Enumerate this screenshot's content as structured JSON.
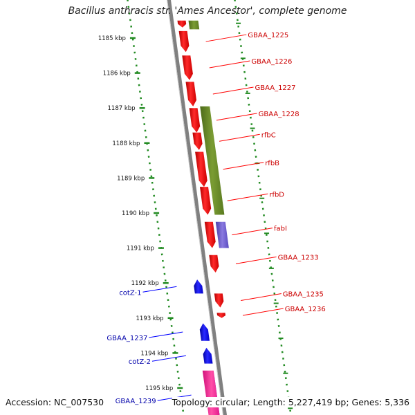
{
  "title": "Bacillus anthracis str. 'Ames Ancestor', complete genome",
  "footer": {
    "accession": "Accession: NC_007530",
    "topology": "Topology: circular; Length: 5,227,419 bp; Genes: 5,336"
  },
  "colors": {
    "backbone": "#808080",
    "red_gene": "#ff0000",
    "blue_gene": "#0000ff",
    "olive_feature": "#6b8e23",
    "slateblue_feature": "#6a5acd",
    "pink_feature": "#ff1493",
    "ruler_tick": "#228b22",
    "red_label": "#cc0000",
    "blue_label": "#0000aa"
  },
  "ruler": {
    "unit": "kbp",
    "ticks": [
      {
        "label": "1185 kbp",
        "kbp": 1185
      },
      {
        "label": "1186 kbp",
        "kbp": 1186
      },
      {
        "label": "1187 kbp",
        "kbp": 1187
      },
      {
        "label": "1188 kbp",
        "kbp": 1188
      },
      {
        "label": "1189 kbp",
        "kbp": 1189
      },
      {
        "label": "1190 kbp",
        "kbp": 1190
      },
      {
        "label": "1191 kbp",
        "kbp": 1191
      },
      {
        "label": "1192 kbp",
        "kbp": 1192
      },
      {
        "label": "1193 kbp",
        "kbp": 1193
      },
      {
        "label": "1194 kbp",
        "kbp": 1194
      },
      {
        "label": "1195 kbp",
        "kbp": 1195
      }
    ]
  },
  "features": [
    {
      "strand": "forward",
      "color": "red",
      "start": 1184.5,
      "end": 1184.7,
      "label": ""
    },
    {
      "strand": "forward",
      "color": "red",
      "start": 1184.8,
      "end": 1185.4,
      "label": "GBAA_1225"
    },
    {
      "strand": "forward",
      "color": "red",
      "start": 1185.5,
      "end": 1186.2,
      "label": "GBAA_1226"
    },
    {
      "strand": "forward",
      "color": "red",
      "start": 1186.25,
      "end": 1186.95,
      "label": "GBAA_1227"
    },
    {
      "strand": "forward",
      "color": "red",
      "start": 1187.0,
      "end": 1187.7,
      "label": "GBAA_1228"
    },
    {
      "strand": "forward",
      "color": "red",
      "start": 1187.7,
      "end": 1188.2,
      "label": "rfbC"
    },
    {
      "strand": "forward",
      "color": "red",
      "start": 1188.25,
      "end": 1189.25,
      "label": "rfbB"
    },
    {
      "strand": "forward",
      "color": "red",
      "start": 1189.25,
      "end": 1190.05,
      "label": "rfbD"
    },
    {
      "strand": "forward",
      "color": "red",
      "start": 1190.25,
      "end": 1191.0,
      "label": "fabI"
    },
    {
      "strand": "forward",
      "color": "red",
      "start": 1191.2,
      "end": 1191.7,
      "label": "GBAA_1233"
    },
    {
      "strand": "forward",
      "color": "red",
      "start": 1192.3,
      "end": 1192.7,
      "label": "GBAA_1235"
    },
    {
      "strand": "forward",
      "color": "red",
      "start": 1192.85,
      "end": 1193.0,
      "label": "GBAA_1236"
    },
    {
      "strand": "reverse",
      "color": "blue",
      "start": 1191.9,
      "end": 1192.3,
      "label": "cotZ-1"
    },
    {
      "strand": "reverse",
      "color": "blue",
      "start": 1193.15,
      "end": 1193.65,
      "label": "GBAA_1237"
    },
    {
      "strand": "reverse",
      "color": "blue",
      "start": 1193.85,
      "end": 1194.3,
      "label": "cotZ-2"
    },
    {
      "strand": "reverse",
      "color": "blue",
      "start": 1194.5,
      "end": 1195.9,
      "label": "GBAA_1239"
    },
    {
      "strand": "forward",
      "color": "olive",
      "start": 1184.5,
      "end": 1184.75,
      "label": ""
    },
    {
      "strand": "forward",
      "color": "olive",
      "start": 1186.95,
      "end": 1190.05,
      "label": ""
    },
    {
      "strand": "forward",
      "color": "slateblue",
      "start": 1190.25,
      "end": 1191.0,
      "label": ""
    },
    {
      "strand": "forward",
      "color": "pink",
      "start": 1194.5,
      "end": 1195.9,
      "label": ""
    }
  ]
}
